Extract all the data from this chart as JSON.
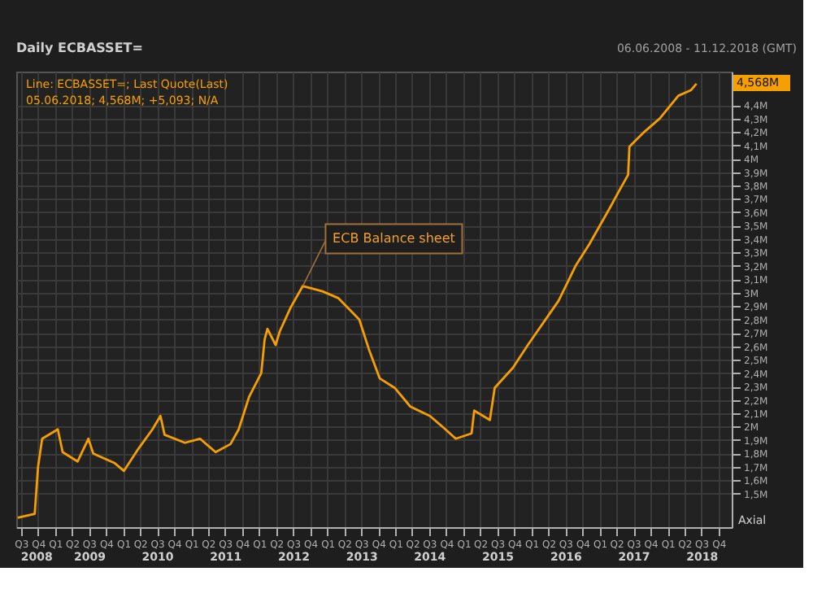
{
  "chart_data": {
    "type": "line",
    "title": "Daily ECBASSET=",
    "subtitle": "06.06.2008 - 11.12.2018 (GMT)",
    "x": [
      "2008-06-14",
      "2008-09-13",
      "2008-10-01",
      "2008-10-23",
      "2009-01-15",
      "2009-02-10",
      "2009-05-01",
      "2009-06-28",
      "2009-07-24",
      "2009-11-14",
      "2010-01-05",
      "2010-03-26",
      "2010-06-07",
      "2010-07-20",
      "2010-08-11",
      "2010-11-28",
      "2011-02-17",
      "2011-05-12",
      "2011-07-31",
      "2011-09-13",
      "2011-11-07",
      "2012-01-12",
      "2012-01-30",
      "2012-02-14",
      "2012-03-29",
      "2012-04-20",
      "2012-06-18",
      "2012-08-22",
      "2012-12-06",
      "2013-02-28",
      "2013-06-21",
      "2013-08-11",
      "2013-10-09",
      "2013-12-28",
      "2014-03-22",
      "2014-07-05",
      "2014-09-02",
      "2014-11-21",
      "2015-02-14",
      "2015-02-28",
      "2015-05-23",
      "2015-06-18",
      "2015-09-24",
      "2015-12-13",
      "2016-05-26",
      "2016-08-25",
      "2016-11-06",
      "2017-02-24",
      "2017-04-20",
      "2017-06-03",
      "2017-06-10",
      "2017-08-29",
      "2017-11-20",
      "2018-02-28",
      "2018-05-05",
      "2018-06-05"
    ],
    "series": [
      {
        "color": "#f5a000",
        "values": [
          1.32,
          1.35,
          1.7,
          1.91,
          1.98,
          1.81,
          1.74,
          1.91,
          1.8,
          1.73,
          1.67,
          1.84,
          1.98,
          2.08,
          1.94,
          1.88,
          1.91,
          1.81,
          1.87,
          1.98,
          2.22,
          2.4,
          2.65,
          2.73,
          2.61,
          2.71,
          2.89,
          3.05,
          3.01,
          2.96,
          2.8,
          2.58,
          2.36,
          2.29,
          2.15,
          2.08,
          2.01,
          1.91,
          1.95,
          2.12,
          2.05,
          2.29,
          2.44,
          2.61,
          2.94,
          3.2,
          3.36,
          3.63,
          3.77,
          3.88,
          4.09,
          4.2,
          4.3,
          4.47,
          4.51,
          4.56
        ]
      }
    ],
    "xlim": [
      "2008-06-06",
      "2018-12-11"
    ],
    "xticks": [
      {
        "value": "2008-07-01",
        "label": "Q3"
      },
      {
        "value": "2008-10-01",
        "label": "Q4"
      },
      {
        "value": "2009-01-01",
        "label": "Q1"
      },
      {
        "value": "2009-04-01",
        "label": "Q2"
      },
      {
        "value": "2009-07-01",
        "label": "Q3"
      },
      {
        "value": "2009-10-01",
        "label": "Q4"
      },
      {
        "value": "2010-01-01",
        "label": "Q1"
      },
      {
        "value": "2010-04-01",
        "label": "Q2"
      },
      {
        "value": "2010-07-01",
        "label": "Q3"
      },
      {
        "value": "2010-10-01",
        "label": "Q4"
      },
      {
        "value": "2011-01-01",
        "label": "Q1"
      },
      {
        "value": "2011-04-01",
        "label": "Q2"
      },
      {
        "value": "2011-07-01",
        "label": "Q3"
      },
      {
        "value": "2011-10-01",
        "label": "Q4"
      },
      {
        "value": "2012-01-01",
        "label": "Q1"
      },
      {
        "value": "2012-04-01",
        "label": "Q2"
      },
      {
        "value": "2012-07-01",
        "label": "Q3"
      },
      {
        "value": "2012-10-01",
        "label": "Q4"
      },
      {
        "value": "2013-01-01",
        "label": "Q1"
      },
      {
        "value": "2013-04-01",
        "label": "Q2"
      },
      {
        "value": "2013-07-01",
        "label": "Q3"
      },
      {
        "value": "2013-10-01",
        "label": "Q4"
      },
      {
        "value": "2014-01-01",
        "label": "Q1"
      },
      {
        "value": "2014-04-01",
        "label": "Q2"
      },
      {
        "value": "2014-07-01",
        "label": "Q3"
      },
      {
        "value": "2014-10-01",
        "label": "Q4"
      },
      {
        "value": "2015-01-01",
        "label": "Q1"
      },
      {
        "value": "2015-04-01",
        "label": "Q2"
      },
      {
        "value": "2015-07-01",
        "label": "Q3"
      },
      {
        "value": "2015-10-01",
        "label": "Q4"
      },
      {
        "value": "2016-01-01",
        "label": "Q1"
      },
      {
        "value": "2016-04-01",
        "label": "Q2"
      },
      {
        "value": "2016-07-01",
        "label": "Q3"
      },
      {
        "value": "2016-10-01",
        "label": "Q4"
      },
      {
        "value": "2017-01-01",
        "label": "Q1"
      },
      {
        "value": "2017-04-01",
        "label": "Q2"
      },
      {
        "value": "2017-07-01",
        "label": "Q3"
      },
      {
        "value": "2017-10-01",
        "label": "Q4"
      },
      {
        "value": "2018-01-01",
        "label": "Q1"
      },
      {
        "value": "2018-04-01",
        "label": "Q2"
      },
      {
        "value": "2018-07-01",
        "label": "Q3"
      },
      {
        "value": "2018-10-01",
        "label": "Q4"
      }
    ],
    "x2lim": [
      "2008-06-06",
      "2018-12-11"
    ],
    "x2ticks": [
      {
        "value": "2008-09-20",
        "label": "2008"
      },
      {
        "value": "2009-07-01",
        "label": "2009"
      },
      {
        "value": "2010-07-01",
        "label": "2010"
      },
      {
        "value": "2011-07-01",
        "label": "2011"
      },
      {
        "value": "2012-07-01",
        "label": "2012"
      },
      {
        "value": "2013-07-01",
        "label": "2013"
      },
      {
        "value": "2014-07-01",
        "label": "2014"
      },
      {
        "value": "2015-07-01",
        "label": "2015"
      },
      {
        "value": "2016-07-01",
        "label": "2016"
      },
      {
        "value": "2017-07-01",
        "label": "2017"
      },
      {
        "value": "2018-07-01",
        "label": "2018"
      }
    ],
    "ylim": [
      1.25,
      4.65
    ],
    "yticks": [
      {
        "value": 1.5,
        "label": "1,5M"
      },
      {
        "value": 1.6,
        "label": "1,6M"
      },
      {
        "value": 1.7,
        "label": "1,7M"
      },
      {
        "value": 1.8,
        "label": "1,8M"
      },
      {
        "value": 1.9,
        "label": "1,9M"
      },
      {
        "value": 2,
        "label": "2M"
      },
      {
        "value": 2.1,
        "label": "2,1M"
      },
      {
        "value": 2.2,
        "label": "2,2M"
      },
      {
        "value": 2.3,
        "label": "2,3M"
      },
      {
        "value": 2.4,
        "label": "2,4M"
      },
      {
        "value": 2.5,
        "label": "2,5M"
      },
      {
        "value": 2.6,
        "label": "2,6M"
      },
      {
        "value": 2.7,
        "label": "2,7M"
      },
      {
        "value": 2.8,
        "label": "2,8M"
      },
      {
        "value": 2.9,
        "label": "2,9M"
      },
      {
        "value": 3,
        "label": "3M"
      },
      {
        "value": 3.1,
        "label": "3,1M"
      },
      {
        "value": 3.2,
        "label": "3,2M"
      },
      {
        "value": 3.3,
        "label": "3,3M"
      },
      {
        "value": 3.4,
        "label": "3,4M"
      },
      {
        "value": 3.5,
        "label": "3,5M"
      },
      {
        "value": 3.6,
        "label": "3,6M"
      },
      {
        "value": 3.7,
        "label": "3,7M"
      },
      {
        "value": 3.8,
        "label": "3,8M"
      },
      {
        "value": 3.9,
        "label": "3,9M"
      },
      {
        "value": 4,
        "label": "4M"
      },
      {
        "value": 4.1,
        "label": "4,1M"
      },
      {
        "value": 4.2,
        "label": "4,2M"
      },
      {
        "value": 4.3,
        "label": "4,3M"
      },
      {
        "value": 4.4,
        "label": "4,4M"
      }
    ],
    "grid": true,
    "annotations": [
      "Line: ECBASSET=; Last Quote(Last)",
      "05.06.2018; 4,568M; +5,093; N/A",
      "Axial",
      {
        "text": "ECB Balance sheet",
        "x": "2012-08-22",
        "y": 3.05
      },
      "4,568M"
    ]
  }
}
